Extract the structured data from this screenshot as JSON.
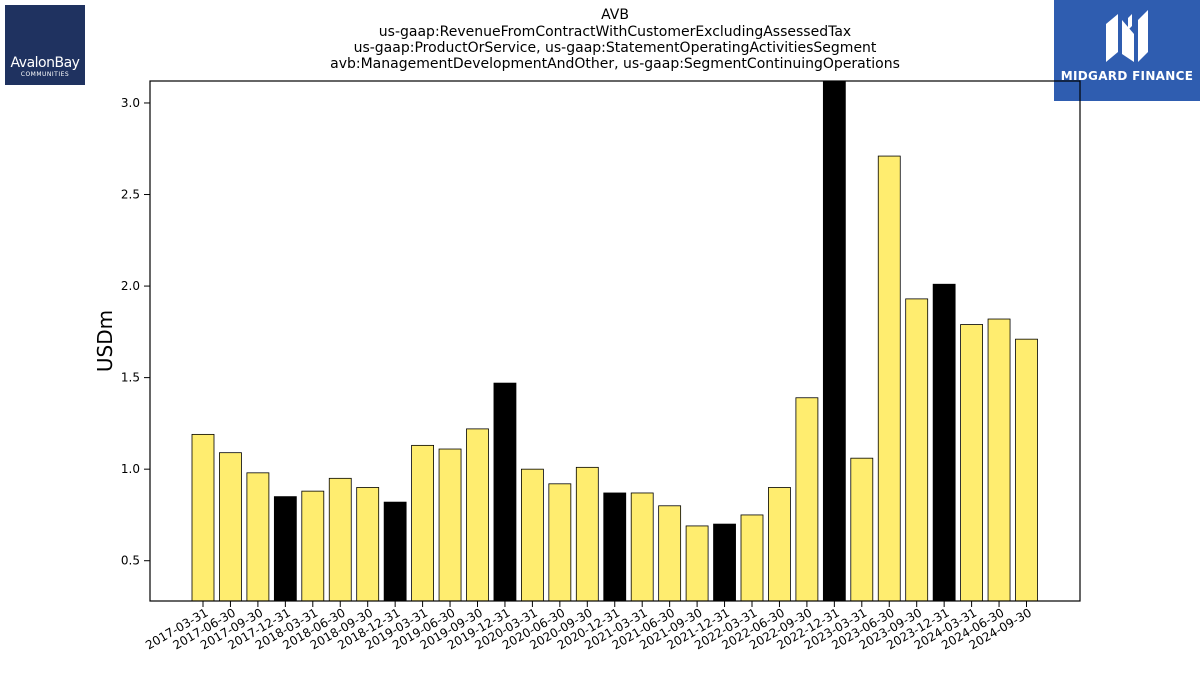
{
  "colors": {
    "bar_default": "#ffed6f",
    "bar_highlight": "#000000",
    "bar_edge": "#000000",
    "logo_left_bg": "#1f3260",
    "logo_right_bg": "#2f5db0"
  },
  "logos": {
    "left": {
      "brand": "AvalonBay",
      "sub": "COMMUNITIES"
    },
    "right": {
      "brand": "MIDGARD FINANCE",
      "icon": "midgard-m-icon"
    }
  },
  "chart_data": {
    "type": "bar",
    "title_lines": [
      "AVB",
      "us-gaap:RevenueFromContractWithCustomerExcludingAssessedTax",
      "us-gaap:ProductOrService, us-gaap:StatementOperatingActivitiesSegment",
      "avb:ManagementDevelopmentAndOther, us-gaap:SegmentContinuingOperations"
    ],
    "xlabel": "",
    "ylabel": "USDm",
    "ylim": [
      0.28,
      3.12
    ],
    "yticks": [
      0.5,
      1.0,
      1.5,
      2.0,
      2.5,
      3.0
    ],
    "ytick_labels": [
      "0.5",
      "1.0",
      "1.5",
      "2.0",
      "2.5",
      "3.0"
    ],
    "grid": false,
    "categories": [
      "2017-03-31",
      "2017-06-30",
      "2017-09-30",
      "2017-12-31",
      "2018-03-31",
      "2018-06-30",
      "2018-09-30",
      "2018-12-31",
      "2019-03-31",
      "2019-06-30",
      "2019-09-30",
      "2019-12-31",
      "2020-03-31",
      "2020-06-30",
      "2020-09-30",
      "2020-12-31",
      "2021-03-31",
      "2021-06-30",
      "2021-09-30",
      "2021-12-31",
      "2022-03-31",
      "2022-06-30",
      "2022-09-30",
      "2022-12-31",
      "2023-03-31",
      "2023-06-30",
      "2023-09-30",
      "2023-12-31",
      "2024-03-31",
      "2024-06-30",
      "2024-09-30"
    ],
    "values": [
      1.19,
      1.09,
      0.98,
      0.85,
      0.88,
      0.95,
      0.9,
      0.82,
      1.13,
      1.11,
      1.22,
      1.47,
      1.0,
      0.92,
      1.01,
      0.87,
      0.87,
      0.8,
      0.69,
      0.7,
      0.75,
      0.9,
      1.39,
      3.12,
      1.06,
      2.71,
      1.93,
      2.01,
      1.79,
      1.82,
      1.71
    ],
    "highlight": [
      false,
      false,
      false,
      true,
      false,
      false,
      false,
      true,
      false,
      false,
      false,
      true,
      false,
      false,
      false,
      true,
      false,
      false,
      false,
      true,
      false,
      false,
      false,
      true,
      false,
      false,
      false,
      true,
      false,
      false,
      false
    ]
  }
}
